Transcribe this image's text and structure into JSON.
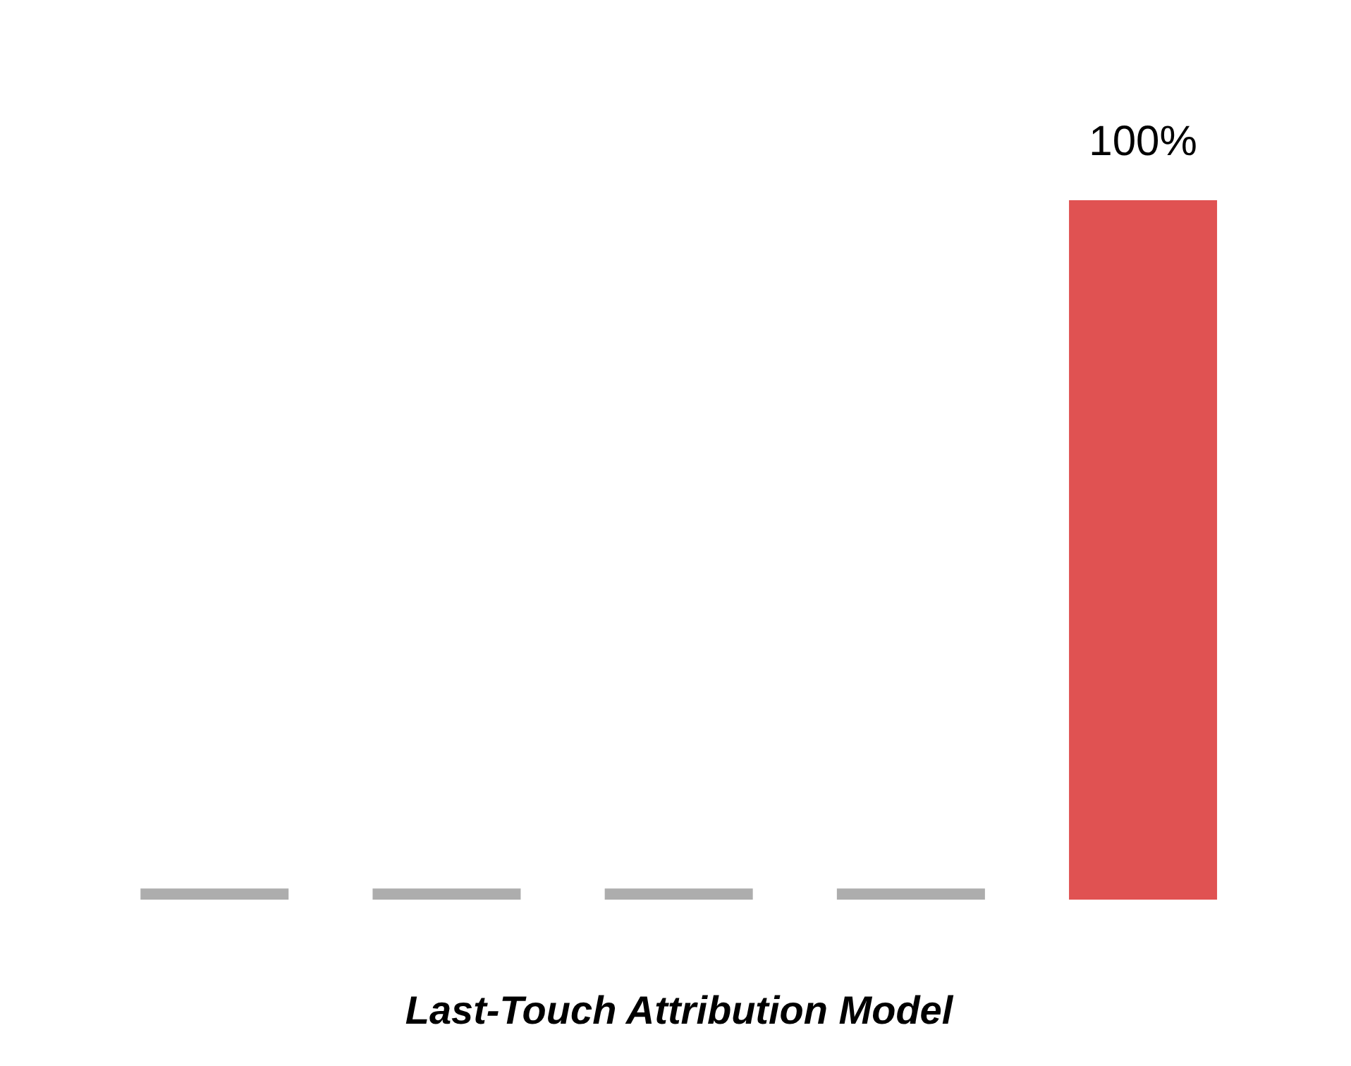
{
  "chart_data": {
    "type": "bar",
    "xlabel": "Last-Touch Attribution Model",
    "categories": [
      null,
      null,
      null,
      null,
      null
    ],
    "values": [
      1.6,
      1.6,
      1.6,
      1.6,
      100
    ],
    "colors": [
      "#adadad",
      "#adadad",
      "#adadad",
      "#adadad",
      "#e05252"
    ],
    "value_labels": [
      null,
      null,
      null,
      null,
      "100%"
    ]
  }
}
